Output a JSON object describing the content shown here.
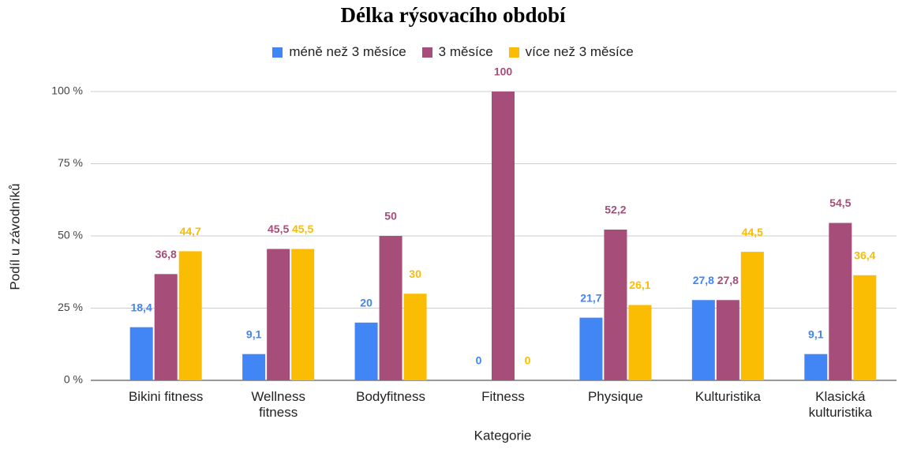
{
  "chart_data": {
    "type": "bar",
    "title": "Délka rýsovacího období",
    "x_label": "Kategorie",
    "y_label": "Podíl u závodníků",
    "categories": [
      "Bikini fitness",
      "Wellness fitness",
      "Bodyfitness",
      "Fitness",
      "Physique",
      "Kulturistika",
      "Klasická kulturistika"
    ],
    "series": [
      {
        "name": "méně než 3 měsíce",
        "color": "#4285f4",
        "values": [
          18.4,
          9.1,
          20,
          0,
          21.7,
          27.8,
          9.1
        ],
        "value_labels": [
          "18,4",
          "9,1",
          "20",
          "0",
          "21,7",
          "27,8",
          "9,1"
        ]
      },
      {
        "name": "3 měsíce",
        "color": "#a64d79",
        "values": [
          36.8,
          45.5,
          50,
          100,
          52.2,
          27.8,
          54.5
        ],
        "value_labels": [
          "36,8",
          "45,5",
          "50",
          "100",
          "52,2",
          "27,8",
          "54,5"
        ]
      },
      {
        "name": "více než 3 měsíce",
        "color": "#fbbc04",
        "values": [
          44.7,
          45.5,
          30,
          0,
          26.1,
          44.5,
          36.4
        ],
        "value_labels": [
          "44,7",
          "45,5",
          "30",
          "0",
          "26,1",
          "44,5",
          "36,4"
        ]
      }
    ],
    "ylim": [
      0,
      100
    ],
    "yticks": [
      {
        "value": 0,
        "label": "0 %"
      },
      {
        "value": 25,
        "label": "25 %"
      },
      {
        "value": 50,
        "label": "50 %"
      },
      {
        "value": 75,
        "label": "75 %"
      },
      {
        "value": 100,
        "label": "100 %"
      }
    ],
    "grid": true,
    "legend": "top"
  }
}
